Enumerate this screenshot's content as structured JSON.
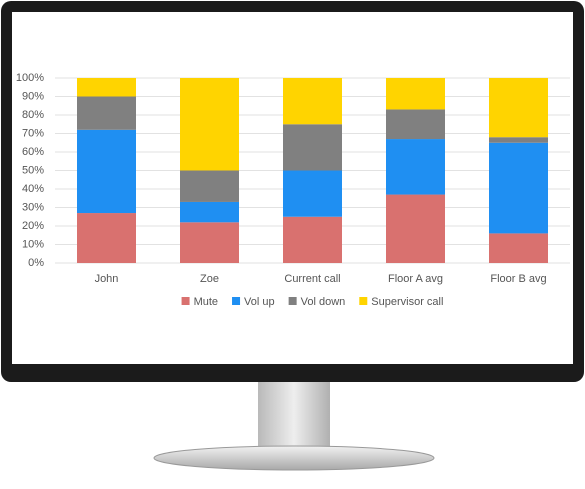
{
  "chart_data": {
    "type": "stacked_bar",
    "categories": [
      "John",
      "Zoe",
      "Current call",
      "Floor A avg",
      "Floor B avg"
    ],
    "series": [
      {
        "name": "Mute",
        "color": "#d9716f",
        "values": [
          27,
          22,
          25,
          37,
          16
        ]
      },
      {
        "name": "Vol up",
        "color": "#1f8ff2",
        "values": [
          45,
          11,
          25,
          30,
          49
        ]
      },
      {
        "name": "Vol down",
        "color": "#808080",
        "values": [
          18,
          17,
          25,
          16,
          3
        ]
      },
      {
        "name": "Supervisor call",
        "color": "#ffd400",
        "values": [
          10,
          50,
          25,
          17,
          32
        ]
      }
    ],
    "ylim": [
      0,
      100
    ],
    "yticks": [
      {
        "value": 0,
        "label": "0%"
      },
      {
        "value": 10,
        "label": "10%"
      },
      {
        "value": 20,
        "label": "20%"
      },
      {
        "value": 30,
        "label": "30%"
      },
      {
        "value": 40,
        "label": "40%"
      },
      {
        "value": 50,
        "label": "50%"
      },
      {
        "value": 60,
        "label": "60%"
      },
      {
        "value": 70,
        "label": "70%"
      },
      {
        "value": 80,
        "label": "80%"
      },
      {
        "value": 90,
        "label": "90%"
      },
      {
        "value": 100,
        "label": "100%"
      }
    ],
    "grid": true,
    "legend": "bottom"
  }
}
